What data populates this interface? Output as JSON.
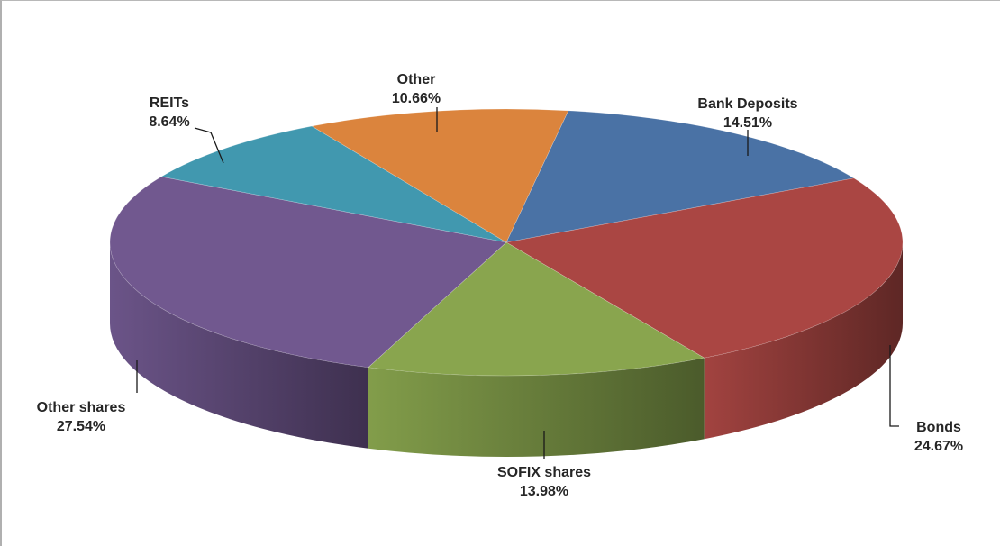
{
  "chart_data": {
    "type": "pie",
    "style": "3d",
    "legend": "none",
    "slices": [
      {
        "label": "Bank Deposits",
        "value": 14.51,
        "value_text": "14.51%",
        "color": "#4A72A5"
      },
      {
        "label": "Bonds",
        "value": 24.67,
        "value_text": "24.67%",
        "color": "#AA4643"
      },
      {
        "label": "SOFIX shares",
        "value": 13.98,
        "value_text": "13.98%",
        "color": "#89A54E"
      },
      {
        "label": "Other shares",
        "value": 27.54,
        "value_text": "27.54%",
        "color": "#71588F"
      },
      {
        "label": "REITs",
        "value": 8.64,
        "value_text": "8.64%",
        "color": "#4198AF"
      },
      {
        "label": "Other",
        "value": 10.66,
        "value_text": "10.66%",
        "color": "#DB843D"
      }
    ]
  }
}
